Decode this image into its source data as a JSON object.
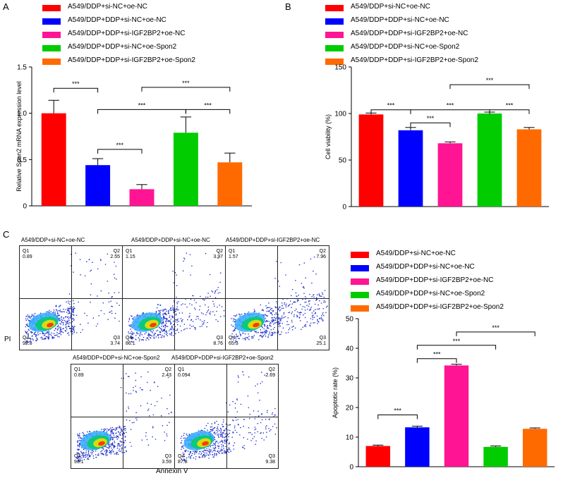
{
  "panels": {
    "a": "A",
    "b": "B",
    "c": "C"
  },
  "legend": [
    {
      "label": "A549/DDP+si-NC+oe-NC",
      "color": "#ff0000"
    },
    {
      "label": "A549/DDP+DDP+si-NC+oe-NC",
      "color": "#0000ff"
    },
    {
      "label": "A549/DDP+DDP+si-IGF2BP2+oe-NC",
      "color": "#ff1493"
    },
    {
      "label": "A549/DDP+DDP+si-NC+oe-Spon2",
      "color": "#00cc00"
    },
    {
      "label": "A549/DDP+DDP+si-IGF2BP2+oe-Spon2",
      "color": "#ff6a00"
    }
  ],
  "chart_data": [
    {
      "id": "A",
      "type": "bar",
      "title": "",
      "ylabel": "Relative Spon2 mRNA expression level",
      "ylim": [
        0,
        1.5
      ],
      "yticks": [
        0,
        0.5,
        1.0,
        1.5
      ],
      "ytick_labels": [
        "0",
        "0.5",
        "1.0",
        "1.5"
      ],
      "values": [
        1.0,
        0.44,
        0.18,
        0.79,
        0.47
      ],
      "errors": [
        0.14,
        0.07,
        0.05,
        0.17,
        0.1
      ],
      "significance": [
        {
          "from": 0,
          "to": 1,
          "level": 1.27,
          "label": "***"
        },
        {
          "from": 1,
          "to": 2,
          "level": 0.61,
          "label": "***"
        },
        {
          "from": 1,
          "to": 3,
          "level": 1.04,
          "label": "***"
        },
        {
          "from": 2,
          "to": 4,
          "level": 1.28,
          "label": "***"
        },
        {
          "from": 3,
          "to": 4,
          "level": 1.04,
          "label": "***"
        }
      ]
    },
    {
      "id": "B",
      "type": "bar",
      "title": "",
      "ylabel": "Cell viability (%)",
      "ylim": [
        0,
        150
      ],
      "yticks": [
        0,
        50,
        100,
        150
      ],
      "ytick_labels": [
        "0",
        "50",
        "100",
        "150"
      ],
      "values": [
        99,
        82,
        68,
        100,
        83
      ],
      "errors": [
        1.5,
        3,
        1.5,
        1.5,
        2
      ],
      "significance": [
        {
          "from": 0,
          "to": 1,
          "level": 104,
          "label": "***"
        },
        {
          "from": 1,
          "to": 2,
          "level": 90,
          "label": "***"
        },
        {
          "from": 1,
          "to": 3,
          "level": 104,
          "label": "***"
        },
        {
          "from": 2,
          "to": 4,
          "level": 131,
          "label": "***"
        },
        {
          "from": 3,
          "to": 4,
          "level": 104,
          "label": "***"
        }
      ]
    },
    {
      "id": "C",
      "type": "bar",
      "title": "",
      "ylabel": "Apoptotic rate (%)",
      "ylim": [
        0,
        50
      ],
      "yticks": [
        0,
        10,
        20,
        30,
        40,
        50
      ],
      "ytick_labels": [
        "0",
        "10",
        "20",
        "30",
        "40",
        "50"
      ],
      "values": [
        7,
        13.3,
        34.2,
        6.7,
        12.8
      ],
      "errors": [
        0.3,
        0.4,
        0.4,
        0.3,
        0.3
      ],
      "significance": [
        {
          "from": 0,
          "to": 1,
          "level": 17.5,
          "label": "***"
        },
        {
          "from": 1,
          "to": 2,
          "level": 36.5,
          "label": "***"
        },
        {
          "from": 1,
          "to": 3,
          "level": 41,
          "label": "***"
        },
        {
          "from": 2,
          "to": 4,
          "level": 45.5,
          "label": "***"
        }
      ]
    }
  ],
  "flow": {
    "ylabel": "PI",
    "xlabel": "Annexin V",
    "plots": [
      {
        "title": "A549/DDP+si-NC+oe-NC",
        "q1": "0.89",
        "q2": "2.55",
        "q3": "3.74",
        "q4": "92.8"
      },
      {
        "title": "A549/DDP+DDP+si-NC+oe-NC",
        "q1": "1.15",
        "q2": "3.97",
        "q3": "8.76",
        "q4": "86.1"
      },
      {
        "title": "A549/DDP+DDP+si-IGF2BP2+oe-NC",
        "q1": "1.57",
        "q2": "7.96",
        "q3": "25.1",
        "q4": "65.3"
      },
      {
        "title": "A549/DDP+DDP+si-NC+oe-Spon2",
        "q1": "0.89",
        "q2": "2.43",
        "q3": "3.59",
        "q4": "93.1"
      },
      {
        "title": "A549/DDP+DDP+si-IGF2BP2+oe-Spon2",
        "q1": "0.094",
        "q2": "2.69",
        "q3": "9.38",
        "q4": "87.8"
      }
    ],
    "qnames": {
      "q1": "Q1",
      "q2": "Q2",
      "q3": "Q3",
      "q4": "Q4"
    }
  }
}
